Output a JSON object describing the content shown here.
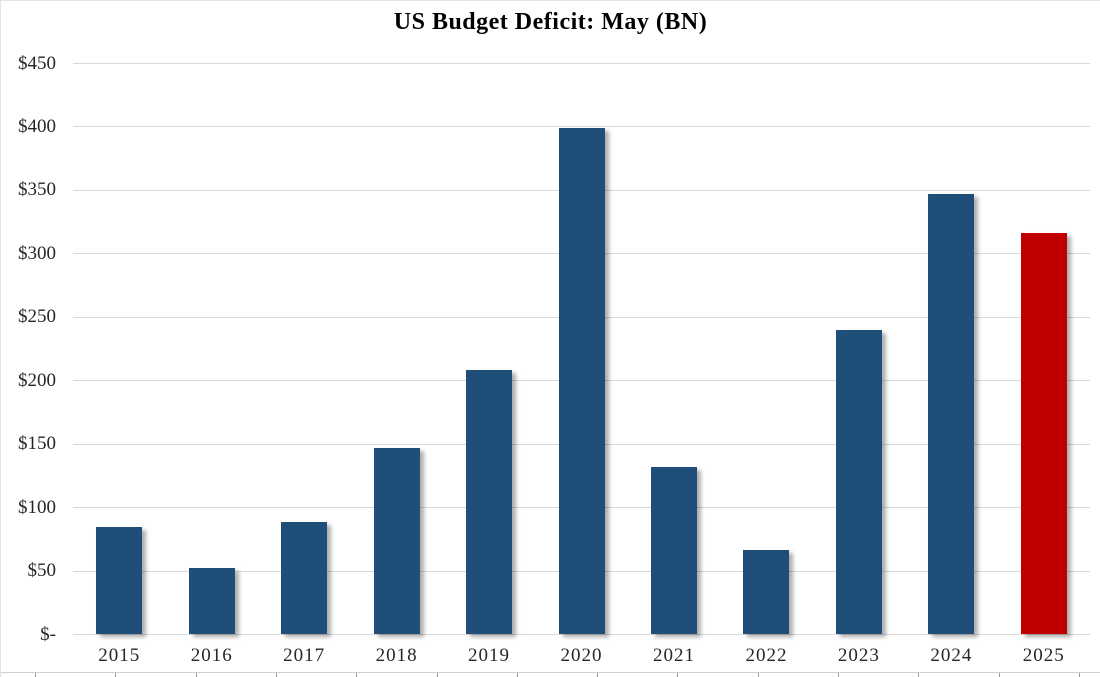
{
  "chart_data": {
    "type": "bar",
    "title": "US Budget Deficit: May (BN)",
    "categories": [
      "2015",
      "2016",
      "2017",
      "2018",
      "2019",
      "2020",
      "2021",
      "2022",
      "2023",
      "2024",
      "2025"
    ],
    "values": [
      84,
      52,
      88,
      147,
      208,
      399,
      132,
      66,
      240,
      347,
      316
    ],
    "value_unit": "USD billions",
    "xlabel": "",
    "ylabel": "",
    "ylim": [
      0,
      450
    ],
    "y_tick_interval": 50,
    "y_tick_labels": [
      "$-",
      "$50",
      "$100",
      "$150",
      "$200",
      "$250",
      "$300",
      "$350",
      "$400",
      "$450"
    ],
    "grid": true,
    "legend": "none",
    "highlight_category": "2025",
    "colors": {
      "bar_default": "#1f4e79",
      "bar_highlight": "#c00000",
      "gridline": "#d9d9d9",
      "axis_text": "#262626",
      "title_text": "#000000",
      "bottom_axis_line": "#d0d0d0",
      "bottom_axis_tick": "#9a9a9a"
    }
  }
}
